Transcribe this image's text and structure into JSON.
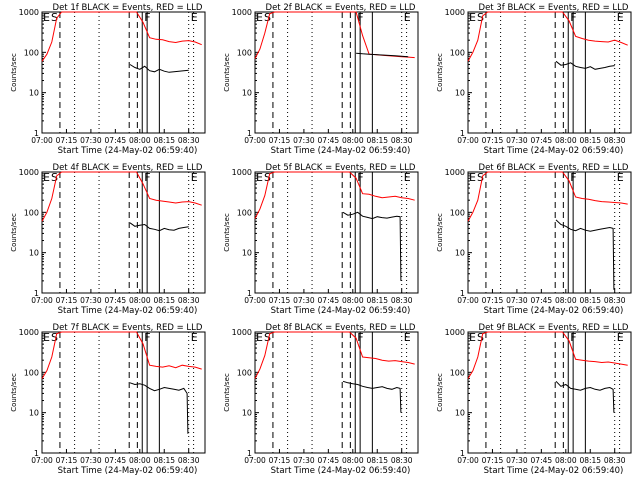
{
  "chart_data": [
    {
      "type": "line",
      "title": "Det 1f BLACK = Events, RED = LLD",
      "xlabel": "Start Time (24-May-02 06:59:40)",
      "ylabel": "Counts/sec",
      "yscale": "log",
      "ylim": [
        1,
        1000
      ],
      "x_ticks": [
        "07:00",
        "07:15",
        "07:30",
        "07:45",
        "08:00",
        "08:15",
        "08:30"
      ],
      "y_ticks": [
        "1",
        "10",
        "100",
        "1000"
      ],
      "markers": [
        "E",
        "S",
        "F",
        "E"
      ],
      "series": [
        {
          "color": "#ff0000",
          "x": [
            0,
            3,
            6,
            9,
            12,
            18,
            22,
            26,
            30,
            34,
            38,
            42,
            46,
            50,
            54,
            58,
            62,
            66,
            70,
            74,
            78,
            82,
            86,
            90,
            94,
            98
          ],
          "values": [
            60,
            90,
            180,
            700,
            1000,
            1000,
            1000,
            1000,
            1000,
            1000,
            1000,
            1000,
            1000,
            1000,
            1000,
            1000,
            550,
            230,
            210,
            205,
            185,
            175,
            190,
            195,
            180,
            155
          ]
        },
        {
          "color": "#000000",
          "x": [
            54,
            57,
            60,
            63,
            66,
            69,
            72,
            75,
            78,
            81,
            84,
            87,
            90
          ],
          "values": [
            50,
            42,
            38,
            45,
            35,
            33,
            38,
            34,
            32,
            33,
            34,
            35,
            36
          ]
        }
      ]
    },
    {
      "type": "line",
      "title": "Det 2f BLACK = Events, RED = LLD",
      "xlabel": "Start Time (24-May-02 06:59:40)",
      "ylabel": "Counts/sec",
      "yscale": "log",
      "ylim": [
        1,
        1000
      ],
      "x_ticks": [
        "07:00",
        "07:15",
        "07:30",
        "07:45",
        "08:00",
        "08:15",
        "08:30"
      ],
      "y_ticks": [
        "1",
        "10",
        "100",
        "1000"
      ],
      "markers": [
        "E",
        "S",
        "F",
        "E"
      ],
      "series": [
        {
          "color": "#ff0000",
          "x": [
            0,
            3,
            6,
            9,
            12,
            18,
            22,
            26,
            30,
            34,
            38,
            42,
            46,
            50,
            54,
            58,
            62,
            66,
            70,
            74,
            78,
            82,
            86,
            90,
            94,
            98
          ],
          "values": [
            70,
            120,
            300,
            900,
            1000,
            1000,
            1000,
            1000,
            1000,
            1000,
            1000,
            1000,
            1000,
            1000,
            1000,
            1000,
            1000,
            260,
            90,
            88,
            85,
            82,
            80,
            78,
            76,
            74
          ]
        },
        {
          "color": "#000000",
          "x": [
            62,
            66,
            70,
            74,
            78,
            82,
            86,
            90,
            94
          ],
          "values": [
            95,
            92,
            90,
            88,
            86,
            84,
            82,
            80,
            78
          ]
        }
      ]
    },
    {
      "type": "line",
      "title": "Det 3f BLACK = Events, RED = LLD",
      "xlabel": "Start Time (24-May-02 06:59:40)",
      "ylabel": "Counts/sec",
      "yscale": "log",
      "ylim": [
        1,
        1000
      ],
      "x_ticks": [
        "07:00",
        "07:15",
        "07:30",
        "07:45",
        "08:00",
        "08:15",
        "08:30"
      ],
      "y_ticks": [
        "1",
        "10",
        "100",
        "1000"
      ],
      "markers": [
        "E",
        "S",
        "F",
        "E"
      ],
      "series": [
        {
          "color": "#ff0000",
          "x": [
            0,
            3,
            6,
            9,
            12,
            18,
            22,
            26,
            30,
            34,
            38,
            42,
            46,
            50,
            54,
            58,
            62,
            66,
            70,
            74,
            78,
            82,
            86,
            90,
            94,
            98
          ],
          "values": [
            60,
            100,
            200,
            800,
            1000,
            1000,
            1000,
            1000,
            1000,
            1000,
            1000,
            1000,
            1000,
            1000,
            1000,
            1000,
            600,
            250,
            220,
            200,
            190,
            185,
            180,
            200,
            175,
            150
          ]
        },
        {
          "color": "#000000",
          "x": [
            54,
            57,
            60,
            63,
            66,
            69,
            72,
            75,
            78,
            81,
            84,
            87,
            90
          ],
          "values": [
            60,
            48,
            50,
            55,
            45,
            42,
            40,
            44,
            38,
            40,
            42,
            45,
            47
          ]
        }
      ]
    },
    {
      "type": "line",
      "title": "Det 4f BLACK = Events, RED = LLD",
      "xlabel": "Start Time (24-May-02 06:59:40)",
      "ylabel": "Counts/sec",
      "yscale": "log",
      "ylim": [
        1,
        1000
      ],
      "x_ticks": [
        "07:00",
        "07:15",
        "07:30",
        "07:45",
        "08:00",
        "08:15",
        "08:30"
      ],
      "y_ticks": [
        "1",
        "10",
        "100",
        "1000"
      ],
      "markers": [
        "E",
        "S",
        "F",
        "E"
      ],
      "series": [
        {
          "color": "#ff0000",
          "x": [
            0,
            3,
            6,
            9,
            12,
            18,
            22,
            26,
            30,
            34,
            38,
            42,
            46,
            50,
            54,
            58,
            62,
            66,
            70,
            74,
            78,
            82,
            86,
            90,
            94,
            98
          ],
          "values": [
            60,
            100,
            220,
            800,
            1000,
            1000,
            1000,
            1000,
            1000,
            1000,
            1000,
            1000,
            1000,
            1000,
            1000,
            1000,
            500,
            220,
            200,
            190,
            180,
            170,
            180,
            185,
            170,
            150
          ]
        },
        {
          "color": "#000000",
          "x": [
            54,
            57,
            60,
            63,
            66,
            69,
            72,
            75,
            78,
            81,
            84,
            87,
            90
          ],
          "values": [
            55,
            45,
            48,
            50,
            40,
            38,
            35,
            40,
            37,
            36,
            40,
            42,
            44
          ]
        }
      ]
    },
    {
      "type": "line",
      "title": "Det 5f BLACK = Events, RED = LLD",
      "xlabel": "Start Time (24-May-02 06:59:40)",
      "ylabel": "Counts/sec",
      "yscale": "log",
      "ylim": [
        1,
        1000
      ],
      "x_ticks": [
        "07:00",
        "07:15",
        "07:30",
        "07:45",
        "08:00",
        "08:15",
        "08:30"
      ],
      "y_ticks": [
        "1",
        "10",
        "100",
        "1000"
      ],
      "markers": [
        "E",
        "S",
        "F",
        "E"
      ],
      "series": [
        {
          "color": "#ff0000",
          "x": [
            0,
            3,
            6,
            9,
            12,
            18,
            22,
            26,
            30,
            34,
            38,
            42,
            46,
            50,
            54,
            58,
            62,
            66,
            70,
            74,
            78,
            82,
            86,
            90,
            94,
            98
          ],
          "values": [
            70,
            120,
            260,
            900,
            1000,
            1000,
            1000,
            1000,
            1000,
            1000,
            1000,
            1000,
            1000,
            1000,
            1000,
            1000,
            700,
            290,
            280,
            250,
            230,
            240,
            250,
            230,
            220,
            200
          ]
        },
        {
          "color": "#000000",
          "x": [
            54,
            57,
            60,
            63,
            66,
            69,
            72,
            75,
            78,
            81,
            84,
            87,
            89,
            89.5
          ],
          "values": [
            100,
            85,
            90,
            100,
            80,
            75,
            70,
            78,
            74,
            72,
            76,
            80,
            78,
            2
          ]
        }
      ]
    },
    {
      "type": "line",
      "title": "Det 6f BLACK = Events, RED = LLD",
      "xlabel": "Start Time (24-May-02 06:59:40)",
      "ylabel": "Counts/sec",
      "yscale": "log",
      "ylim": [
        1,
        1000
      ],
      "x_ticks": [
        "07:00",
        "07:15",
        "07:30",
        "07:45",
        "08:00",
        "08:15",
        "08:30"
      ],
      "y_ticks": [
        "1",
        "10",
        "100",
        "1000"
      ],
      "markers": [
        "E",
        "S",
        "F",
        "E"
      ],
      "series": [
        {
          "color": "#ff0000",
          "x": [
            0,
            3,
            6,
            9,
            12,
            18,
            22,
            26,
            30,
            34,
            38,
            42,
            46,
            50,
            54,
            58,
            62,
            66,
            70,
            74,
            78,
            82,
            86,
            90,
            94,
            98
          ],
          "values": [
            60,
            100,
            200,
            800,
            1000,
            1000,
            1000,
            1000,
            1000,
            1000,
            1000,
            1000,
            1000,
            1000,
            1000,
            1000,
            600,
            240,
            220,
            210,
            195,
            185,
            180,
            175,
            170,
            160
          ]
        },
        {
          "color": "#000000",
          "x": [
            54,
            57,
            60,
            63,
            66,
            69,
            72,
            75,
            78,
            81,
            84,
            87,
            89,
            89.5
          ],
          "values": [
            65,
            50,
            45,
            38,
            35,
            40,
            36,
            34,
            36,
            38,
            40,
            42,
            40,
            1.2
          ]
        }
      ]
    },
    {
      "type": "line",
      "title": "Det 7f BLACK = Events, RED = LLD",
      "xlabel": "Start Time (24-May-02 06:59:40)",
      "ylabel": "Counts/sec",
      "yscale": "log",
      "ylim": [
        1,
        1000
      ],
      "x_ticks": [
        "07:00",
        "07:15",
        "07:30",
        "07:45",
        "08:00",
        "08:15",
        "08:30"
      ],
      "y_ticks": [
        "1",
        "10",
        "100",
        "1000"
      ],
      "markers": [
        "E",
        "S",
        "F",
        "E"
      ],
      "series": [
        {
          "color": "#ff0000",
          "x": [
            0,
            3,
            6,
            9,
            12,
            18,
            22,
            26,
            30,
            34,
            38,
            42,
            46,
            50,
            54,
            58,
            62,
            66,
            70,
            74,
            78,
            82,
            86,
            90,
            94,
            98
          ],
          "values": [
            70,
            110,
            240,
            900,
            1000,
            1000,
            1000,
            1000,
            1000,
            1000,
            1000,
            1000,
            1000,
            1000,
            1000,
            1000,
            500,
            150,
            140,
            135,
            145,
            130,
            150,
            140,
            135,
            120
          ]
        },
        {
          "color": "#000000",
          "x": [
            54,
            57,
            60,
            63,
            66,
            69,
            72,
            75,
            78,
            81,
            84,
            87,
            89,
            89.5
          ],
          "values": [
            55,
            50,
            52,
            48,
            40,
            35,
            38,
            42,
            40,
            38,
            36,
            40,
            30,
            3
          ]
        }
      ]
    },
    {
      "type": "line",
      "title": "Det 8f BLACK = Events, RED = LLD",
      "xlabel": "Start Time (24-May-02 06:59:40)",
      "ylabel": "Counts/sec",
      "yscale": "log",
      "ylim": [
        1,
        1000
      ],
      "x_ticks": [
        "07:00",
        "07:15",
        "07:30",
        "07:45",
        "08:00",
        "08:15",
        "08:30"
      ],
      "y_ticks": [
        "1",
        "10",
        "100",
        "1000"
      ],
      "markers": [
        "E",
        "S",
        "F",
        "E"
      ],
      "series": [
        {
          "color": "#ff0000",
          "x": [
            0,
            3,
            6,
            9,
            12,
            18,
            22,
            26,
            30,
            34,
            38,
            42,
            46,
            50,
            54,
            58,
            62,
            66,
            70,
            74,
            78,
            82,
            86,
            90,
            94,
            98
          ],
          "values": [
            70,
            120,
            260,
            900,
            1000,
            1000,
            1000,
            1000,
            1000,
            1000,
            1000,
            1000,
            1000,
            1000,
            1000,
            1000,
            700,
            240,
            230,
            220,
            200,
            190,
            195,
            185,
            175,
            160
          ]
        },
        {
          "color": "#000000",
          "x": [
            54,
            57,
            60,
            63,
            66,
            69,
            72,
            75,
            78,
            81,
            84,
            87,
            89,
            89.5
          ],
          "values": [
            60,
            55,
            52,
            50,
            45,
            42,
            40,
            42,
            44,
            40,
            38,
            42,
            40,
            10
          ]
        }
      ]
    },
    {
      "type": "line",
      "title": "Det 9f BLACK = Events, RED = LLD",
      "xlabel": "Start Time (24-May-02 06:59:40)",
      "ylabel": "Counts/sec",
      "yscale": "log",
      "ylim": [
        1,
        1000
      ],
      "x_ticks": [
        "07:00",
        "07:15",
        "07:30",
        "07:45",
        "08:00",
        "08:15",
        "08:30"
      ],
      "y_ticks": [
        "1",
        "10",
        "100",
        "1000"
      ],
      "markers": [
        "E",
        "S",
        "F",
        "E"
      ],
      "series": [
        {
          "color": "#ff0000",
          "x": [
            0,
            3,
            6,
            9,
            12,
            18,
            22,
            26,
            30,
            34,
            38,
            42,
            46,
            50,
            54,
            58,
            62,
            66,
            70,
            74,
            78,
            82,
            86,
            90,
            94,
            98
          ],
          "values": [
            70,
            110,
            240,
            900,
            1000,
            1000,
            1000,
            1000,
            1000,
            1000,
            1000,
            1000,
            1000,
            1000,
            1000,
            1000,
            600,
            210,
            200,
            190,
            185,
            175,
            180,
            170,
            160,
            150
          ]
        },
        {
          "color": "#000000",
          "x": [
            54,
            57,
            60,
            63,
            66,
            69,
            72,
            75,
            78,
            81,
            84,
            87,
            89,
            89.5
          ],
          "values": [
            60,
            45,
            50,
            40,
            38,
            36,
            40,
            42,
            38,
            36,
            40,
            42,
            38,
            10
          ]
        }
      ]
    }
  ]
}
